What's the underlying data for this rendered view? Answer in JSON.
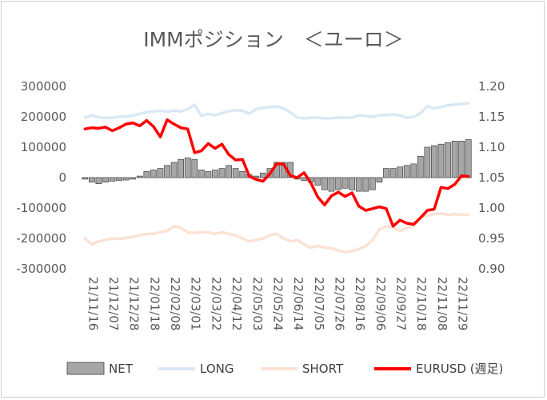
{
  "chart_data": {
    "type": "bar+line",
    "title": "IMMポジション　＜ユーロ＞",
    "left_axis": {
      "ylim": [
        -300000,
        300000
      ],
      "ticks": [
        -300000,
        -200000,
        -100000,
        0,
        100000,
        200000,
        300000
      ],
      "tick_labels": [
        "-300000",
        "-200000",
        "-100000",
        "0",
        "100000",
        "200000",
        "300000"
      ]
    },
    "right_axis": {
      "ylim": [
        0.9,
        1.2
      ],
      "ticks": [
        0.9,
        0.95,
        1.0,
        1.05,
        1.1,
        1.15,
        1.2
      ],
      "tick_labels": [
        "0.90",
        "0.95",
        "1.00",
        "1.05",
        "1.10",
        "1.15",
        "1.20"
      ]
    },
    "x_tick_labels": [
      "21/11/16",
      "21/12/07",
      "21/12/28",
      "22/01/18",
      "22/02/08",
      "22/03/01",
      "22/03/22",
      "22/04/12",
      "22/05/03",
      "22/05/24",
      "22/06/14",
      "22/07/05",
      "22/07/26",
      "22/08/16",
      "22/09/06",
      "22/09/27",
      "22/10/18",
      "22/11/08",
      "22/11/29"
    ],
    "x_tick_every": 3,
    "colors": {
      "net_fill": "#a6a6a6",
      "net_stroke": "#404040",
      "long": "#dae8f5",
      "short": "#fbe2d5",
      "eurusd": "#ff0000",
      "axis_text": "#595959"
    },
    "series": [
      {
        "name": "NET",
        "axis": "left",
        "kind": "bar",
        "values": [
          -5000,
          -15000,
          -20000,
          -15000,
          -12000,
          -10000,
          -8000,
          -5000,
          5000,
          20000,
          25000,
          30000,
          40000,
          50000,
          60000,
          65000,
          60000,
          25000,
          20000,
          25000,
          30000,
          40000,
          30000,
          20000,
          10000,
          5000,
          15000,
          30000,
          50000,
          50000,
          50000,
          -5000,
          -10000,
          -15000,
          -25000,
          -40000,
          -45000,
          -40000,
          -35000,
          -40000,
          -45000,
          -45000,
          -40000,
          -15000,
          30000,
          30000,
          35000,
          40000,
          45000,
          70000,
          100000,
          105000,
          110000,
          115000,
          120000,
          120000,
          125000
        ]
      },
      {
        "name": "LONG",
        "axis": "left",
        "kind": "line",
        "values": [
          197000,
          205000,
          198000,
          196000,
          197000,
          200000,
          201000,
          204000,
          210000,
          215000,
          218000,
          220000,
          217000,
          220000,
          218000,
          225000,
          240000,
          203000,
          210000,
          205000,
          212000,
          218000,
          222000,
          220000,
          210000,
          225000,
          230000,
          232000,
          234000,
          228000,
          215000,
          198000,
          195000,
          197000,
          197000,
          195000,
          195000,
          198000,
          197000,
          197000,
          205000,
          203000,
          200000,
          205000,
          206000,
          208000,
          205000,
          197000,
          200000,
          212000,
          235000,
          228000,
          232000,
          238000,
          240000,
          242000,
          245000
        ]
      },
      {
        "name": "SHORT",
        "axis": "left",
        "kind": "line",
        "values": [
          -200000,
          -220000,
          -210000,
          -205000,
          -200000,
          -202000,
          -198000,
          -195000,
          -190000,
          -185000,
          -185000,
          -180000,
          -175000,
          -160000,
          -165000,
          -180000,
          -182000,
          -180000,
          -180000,
          -185000,
          -180000,
          -185000,
          -190000,
          -200000,
          -210000,
          -205000,
          -200000,
          -190000,
          -185000,
          -200000,
          -210000,
          -205000,
          -220000,
          -230000,
          -225000,
          -230000,
          -232000,
          -240000,
          -245000,
          -242000,
          -235000,
          -225000,
          -205000,
          -170000,
          -160000,
          -165000,
          -175000,
          -165000,
          -160000,
          -130000,
          -125000,
          -120000,
          -118000,
          -122000,
          -120000,
          -122000,
          -122000
        ]
      },
      {
        "name": "EURUSD (週足)",
        "axis": "right",
        "kind": "line",
        "values": [
          1.13,
          1.132,
          1.131,
          1.133,
          1.127,
          1.132,
          1.138,
          1.14,
          1.135,
          1.144,
          1.134,
          1.117,
          1.145,
          1.138,
          1.132,
          1.13,
          1.091,
          1.094,
          1.106,
          1.098,
          1.105,
          1.088,
          1.079,
          1.08,
          1.052,
          1.047,
          1.044,
          1.056,
          1.073,
          1.072,
          1.053,
          1.05,
          1.058,
          1.041,
          1.018,
          1.005,
          1.02,
          1.026,
          1.019,
          1.025,
          1.003,
          0.996,
          0.999,
          1.002,
          0.999,
          0.97,
          0.98,
          0.975,
          0.973,
          0.984,
          0.996,
          0.998,
          1.034,
          1.032,
          1.039,
          1.053,
          1.052
        ]
      }
    ],
    "legend": {
      "position": "bottom",
      "entries": [
        "NET",
        "LONG",
        "SHORT",
        "EURUSD (週足)"
      ]
    }
  }
}
